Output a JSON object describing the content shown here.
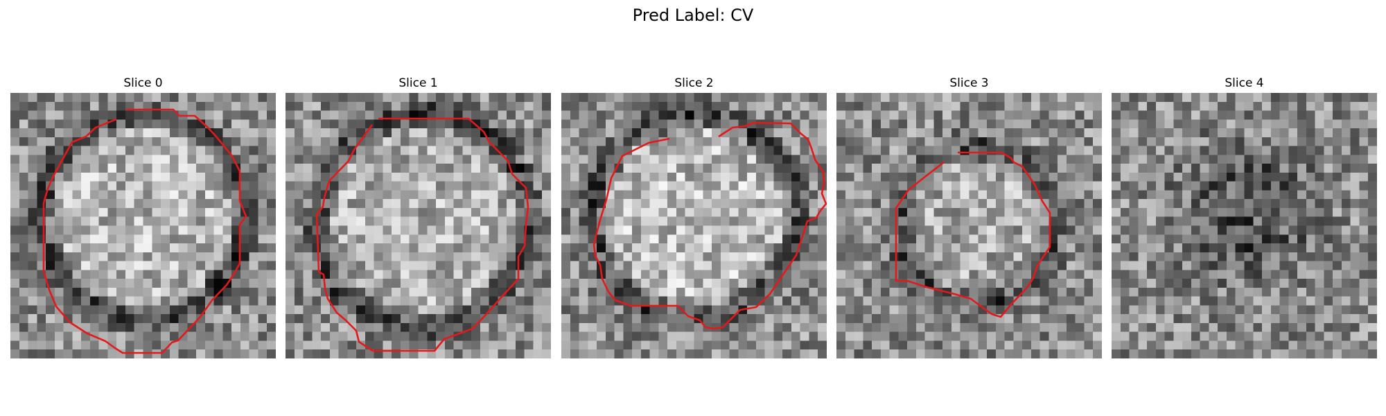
{
  "figure": {
    "title": "Pred Label: CV",
    "contour_color": "#e3191c",
    "colormap": "gray"
  },
  "panels": [
    {
      "title": "Slice 0",
      "has_contour": true
    },
    {
      "title": "Slice 1",
      "has_contour": true
    },
    {
      "title": "Slice 2",
      "has_contour": true
    },
    {
      "title": "Slice 3",
      "has_contour": true
    },
    {
      "title": "Slice 4",
      "has_contour": false
    }
  ]
}
